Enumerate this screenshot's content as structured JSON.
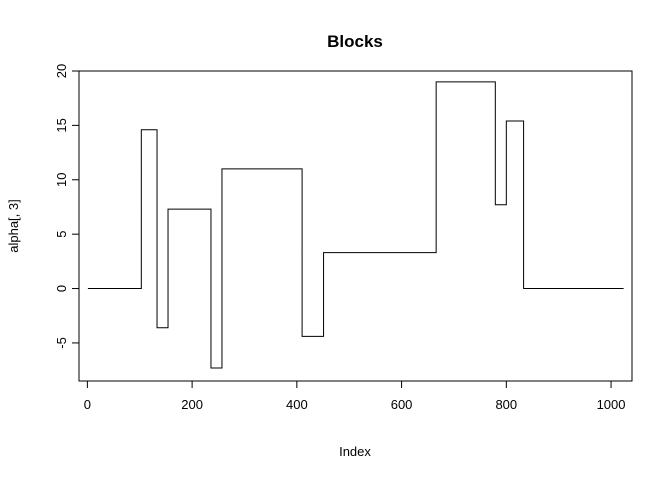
{
  "chart_data": {
    "type": "line",
    "title": "Blocks",
    "xlabel": "Index",
    "ylabel": "alpha[, 3]",
    "xlim": [
      -16,
      1040
    ],
    "ylim": [
      -8.5,
      20
    ],
    "xticks": [
      0,
      200,
      400,
      600,
      800,
      1000
    ],
    "yticks": [
      -5,
      0,
      5,
      10,
      15,
      20
    ],
    "grid": false,
    "line_color": "#000000",
    "series": [
      {
        "x": [
          1,
          103,
          103,
          133,
          133,
          154,
          154,
          236,
          236,
          257,
          257,
          410,
          410,
          451,
          451,
          666,
          666,
          779,
          779,
          800,
          800,
          833,
          833,
          1024
        ],
        "y": [
          0,
          0,
          14.6,
          14.6,
          -3.6,
          -3.6,
          7.3,
          7.3,
          -7.3,
          -7.3,
          11.0,
          11.0,
          -4.4,
          -4.4,
          3.3,
          3.3,
          19.0,
          19.0,
          7.7,
          7.7,
          15.4,
          15.4,
          0,
          0
        ]
      }
    ]
  }
}
